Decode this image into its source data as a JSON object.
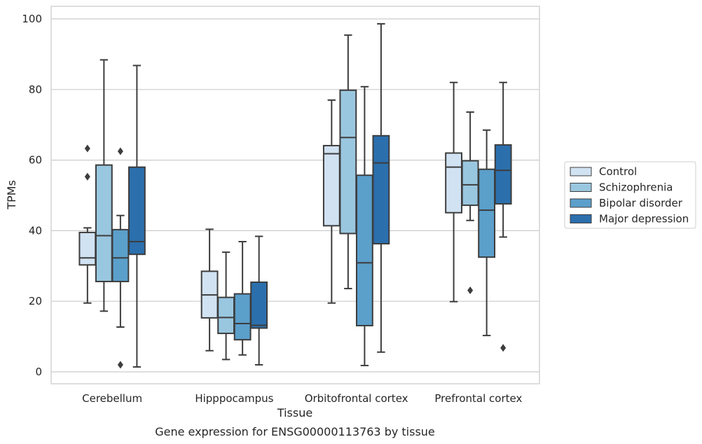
{
  "caption": "Gene expression for ENSG00000113763 by tissue",
  "chart_data": {
    "type": "box",
    "xlabel": "Tissue",
    "ylabel": "TPMs",
    "ylim": [
      -3.2,
      103.5
    ],
    "yticks": [
      0,
      20,
      40,
      60,
      80,
      100
    ],
    "grid": "horizontal",
    "legend_position": "right",
    "categories": [
      "Cerebellum",
      "Hipppocampus",
      "Orbitofrontal cortex",
      "Prefrontal cortex"
    ],
    "series": [
      {
        "name": "Control",
        "color": "#d1e2f2",
        "boxes": [
          {
            "whislo": 19.5,
            "q1": 30.3,
            "med": 32.3,
            "q3": 39.5,
            "whishi": 40.8,
            "fliers": [
              55.3,
              63.3
            ]
          },
          {
            "whislo": 6.0,
            "q1": 15.3,
            "med": 21.8,
            "q3": 28.5,
            "whishi": 40.4,
            "fliers": []
          },
          {
            "whislo": 19.5,
            "q1": 41.4,
            "med": 61.8,
            "q3": 64.1,
            "whishi": 77.0,
            "fliers": []
          },
          {
            "whislo": 19.9,
            "q1": 45.1,
            "med": 58.0,
            "q3": 62.0,
            "whishi": 82.0,
            "fliers": []
          }
        ]
      },
      {
        "name": "Schizophrenia",
        "color": "#9ac7e0",
        "boxes": [
          {
            "whislo": 17.2,
            "q1": 25.6,
            "med": 38.6,
            "q3": 58.6,
            "whishi": 88.4,
            "fliers": []
          },
          {
            "whislo": 3.5,
            "q1": 10.9,
            "med": 15.4,
            "q3": 21.1,
            "whishi": 33.9,
            "fliers": []
          },
          {
            "whislo": 23.6,
            "q1": 39.2,
            "med": 66.4,
            "q3": 79.8,
            "whishi": 95.4,
            "fliers": []
          },
          {
            "whislo": 42.9,
            "q1": 47.2,
            "med": 53.0,
            "q3": 59.8,
            "whishi": 73.6,
            "fliers": [
              23.1
            ]
          }
        ]
      },
      {
        "name": "Bipolar disorder",
        "color": "#5b9fcb",
        "boxes": [
          {
            "whislo": 12.7,
            "q1": 25.6,
            "med": 32.3,
            "q3": 40.3,
            "whishi": 44.3,
            "fliers": [
              2.0,
              62.5
            ]
          },
          {
            "whislo": 4.8,
            "q1": 9.1,
            "med": 13.7,
            "q3": 22.1,
            "whishi": 36.9,
            "fliers": []
          },
          {
            "whislo": 1.8,
            "q1": 13.1,
            "med": 30.9,
            "q3": 55.7,
            "whishi": 80.8,
            "fliers": []
          },
          {
            "whislo": 10.3,
            "q1": 32.5,
            "med": 45.8,
            "q3": 57.4,
            "whishi": 68.5,
            "fliers": []
          }
        ]
      },
      {
        "name": "Major depression",
        "color": "#2b6fad",
        "boxes": [
          {
            "whislo": 1.4,
            "q1": 33.3,
            "med": 36.9,
            "q3": 58.0,
            "whishi": 86.8,
            "fliers": []
          },
          {
            "whislo": 2.0,
            "q1": 12.4,
            "med": 13.2,
            "q3": 25.4,
            "whishi": 38.4,
            "fliers": []
          },
          {
            "whislo": 5.6,
            "q1": 36.3,
            "med": 59.2,
            "q3": 66.9,
            "whishi": 98.6,
            "fliers": []
          },
          {
            "whislo": 38.2,
            "q1": 47.6,
            "med": 57.1,
            "q3": 64.3,
            "whishi": 82.0,
            "fliers": [
              6.8
            ]
          }
        ]
      }
    ]
  }
}
